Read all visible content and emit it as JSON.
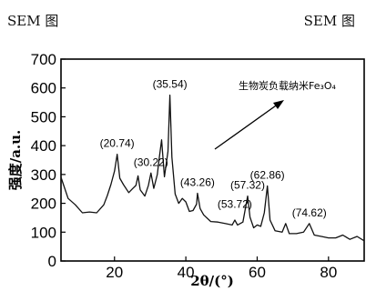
{
  "header": {
    "left_text": "SEM 图",
    "right_text": "SEM 图"
  },
  "chart_data": {
    "type": "line",
    "xlabel": "2θ/(°)",
    "ylabel": "强度/a.u.",
    "xlim": [
      5,
      90
    ],
    "ylim": [
      0,
      700
    ],
    "xticks": [
      20,
      40,
      60,
      80
    ],
    "yticks": [
      0,
      100,
      200,
      300,
      400,
      500,
      600,
      700
    ],
    "grid": false,
    "annotation": "生物炭负载纳米Fe₃O₄",
    "peak_labels": [
      {
        "text": "(20.74)",
        "x": 20.74,
        "y": 370
      },
      {
        "text": "(30.22)",
        "x": 30.22,
        "y": 305
      },
      {
        "text": "(35.54)",
        "x": 35.54,
        "y": 575
      },
      {
        "text": "(43.26)",
        "x": 43.26,
        "y": 235
      },
      {
        "text": "(53.72)",
        "x": 53.72,
        "y": 160
      },
      {
        "text": "(57.32)",
        "x": 57.32,
        "y": 225
      },
      {
        "text": "(62.86)",
        "x": 62.86,
        "y": 260
      },
      {
        "text": "(74.62)",
        "x": 74.62,
        "y": 130
      }
    ],
    "series": [
      {
        "x": [
          5,
          7,
          9,
          11,
          13,
          15,
          17,
          18,
          19,
          20,
          20.74,
          21.5,
          22.5,
          24,
          25,
          26,
          26.6,
          27.2,
          28.5,
          29.5,
          30.22,
          31,
          32,
          32.5,
          33.2,
          34,
          35,
          35.54,
          36.1,
          37,
          38,
          39,
          40,
          41,
          42,
          43,
          43.26,
          44,
          45,
          47,
          49,
          51,
          53,
          53.72,
          54.5,
          56,
          57.32,
          58,
          59,
          60,
          61,
          62,
          62.86,
          63.6,
          65,
          67,
          68,
          69,
          71,
          73,
          74.62,
          76,
          78,
          80,
          82,
          84,
          86,
          88,
          90
        ],
        "y": [
          290,
          225,
          195,
          175,
          170,
          175,
          195,
          235,
          265,
          320,
          370,
          295,
          265,
          245,
          250,
          270,
          295,
          255,
          225,
          270,
          305,
          260,
          300,
          360,
          420,
          300,
          380,
          575,
          360,
          240,
          200,
          225,
          205,
          180,
          175,
          205,
          235,
          190,
          160,
          145,
          135,
          130,
          125,
          150,
          125,
          135,
          225,
          160,
          115,
          125,
          120,
          175,
          260,
          150,
          105,
          100,
          130,
          95,
          95,
          100,
          130,
          90,
          85,
          80,
          80,
          90,
          75,
          85,
          70
        ]
      }
    ]
  }
}
